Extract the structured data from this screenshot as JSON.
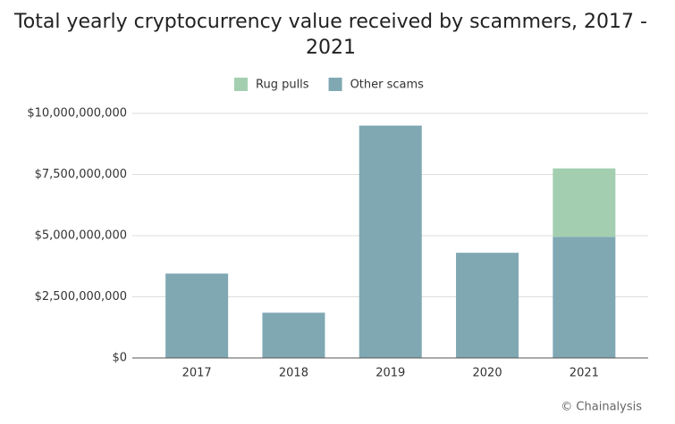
{
  "chart_data": {
    "type": "stacked_bar",
    "title": "Total yearly cryptocurrency value received by scammers, 2017 - 2021",
    "categories": [
      "2017",
      "2018",
      "2019",
      "2020",
      "2021"
    ],
    "series": [
      {
        "name": "Rug pulls",
        "color": "#a3cfb0",
        "values": [
          0,
          0,
          0,
          0,
          2800000000
        ]
      },
      {
        "name": "Other scams",
        "color": "#7fa8b3",
        "values": [
          3450000000,
          1850000000,
          9500000000,
          4300000000,
          4950000000
        ]
      }
    ],
    "ylim": [
      0,
      10000000000
    ],
    "yticks": [
      {
        "value": 0,
        "label": "$0"
      },
      {
        "value": 2500000000,
        "label": "$2,500,000,000"
      },
      {
        "value": 5000000000,
        "label": "$5,000,000,000"
      },
      {
        "value": 7500000000,
        "label": "$7,500,000,000"
      },
      {
        "value": 10000000000,
        "label": "$10,000,000,000"
      }
    ],
    "grid": true,
    "legend": "top",
    "source": "© Chainalysis"
  }
}
